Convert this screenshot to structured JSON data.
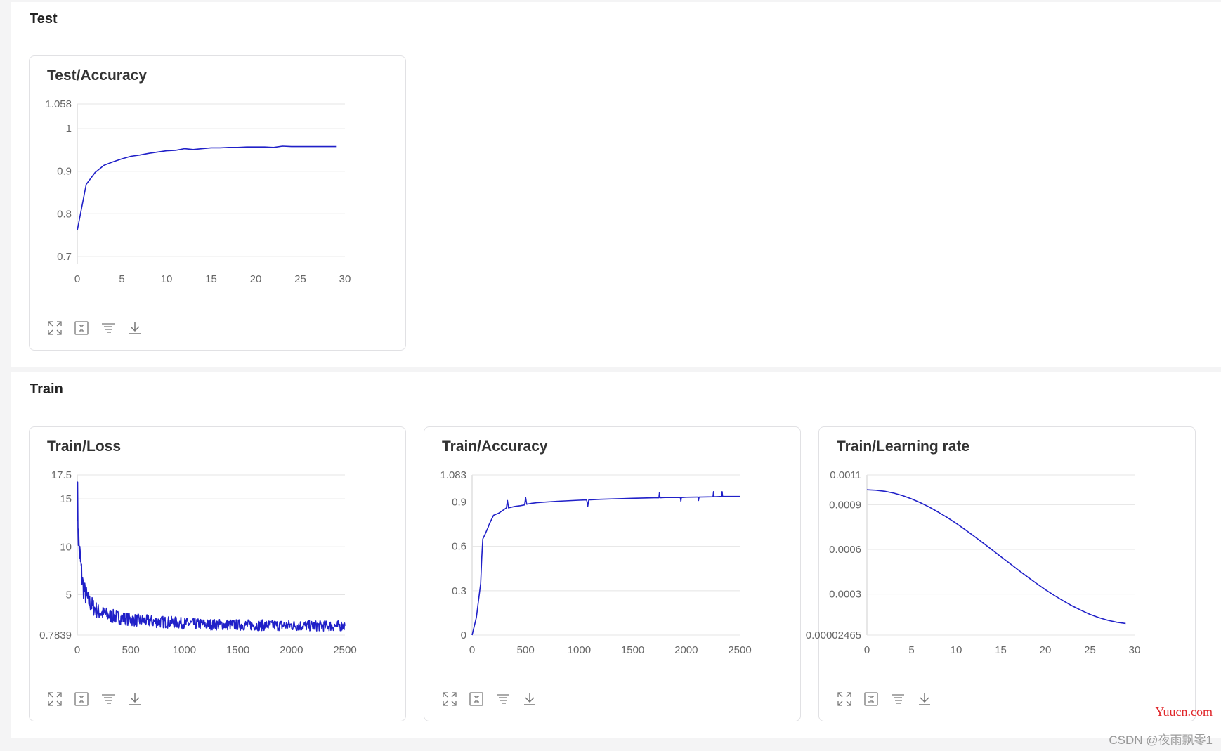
{
  "sections": [
    {
      "title": "Test",
      "cards": [
        {
          "title": "Test/Accuracy",
          "chart_data": {
            "type": "line",
            "title": "Test/Accuracy",
            "xlim": [
              0,
              30
            ],
            "ylim": [
              0.6816,
              1.058
            ],
            "xticks": [
              0,
              5,
              10,
              15,
              20,
              25,
              30
            ],
            "yticks": [
              1.058,
              1,
              0.9,
              0.8,
              0.7
            ],
            "ytick_labels": [
              "1.058",
              "1",
              "0.9",
              "0.8",
              "0.7"
            ],
            "grid": true,
            "color": "#2020c8",
            "x": [
              0,
              1,
              2,
              3,
              4,
              5,
              6,
              7,
              8,
              9,
              10,
              11,
              12,
              13,
              14,
              15,
              16,
              17,
              18,
              19,
              20,
              21,
              22,
              23,
              24,
              25,
              26,
              27,
              28,
              29
            ],
            "y": [
              0.761,
              0.869,
              0.897,
              0.914,
              0.922,
              0.929,
              0.935,
              0.938,
              0.942,
              0.945,
              0.948,
              0.949,
              0.953,
              0.951,
              0.953,
              0.955,
              0.955,
              0.956,
              0.956,
              0.957,
              0.957,
              0.957,
              0.956,
              0.959,
              0.958,
              0.958,
              0.958,
              0.958,
              0.958,
              0.958
            ]
          }
        }
      ]
    },
    {
      "title": "Train",
      "cards": [
        {
          "title": "Train/Loss",
          "chart_data": {
            "type": "line",
            "title": "Train/Loss",
            "xlim": [
              0,
              2500
            ],
            "ylim": [
              0.7839,
              17.5
            ],
            "xticks": [
              0,
              500,
              1000,
              1500,
              2000,
              2500
            ],
            "yticks": [
              17.5,
              15,
              10,
              5,
              0.7839
            ],
            "ytick_labels": [
              "17.5",
              "15",
              "10",
              "5",
              "0.7839"
            ],
            "grid": true,
            "color": "#2020c8",
            "noisy": true,
            "x": [
              0,
              10,
              20,
              30,
              40,
              50,
              70,
              100,
              150,
              200,
              300,
              400,
              500,
              700,
              900,
              1000,
              1200,
              1500,
              1800,
              2000,
              2200,
              2500
            ],
            "y": [
              15.8,
              11.5,
              9.5,
              8.3,
              7.2,
              6.2,
              5.2,
              4.4,
              3.7,
              3.2,
              2.8,
              2.6,
              2.4,
              2.2,
              2.1,
              2.0,
              1.9,
              1.85,
              1.8,
              1.8,
              1.75,
              1.75
            ]
          }
        },
        {
          "title": "Train/Accuracy",
          "chart_data": {
            "type": "line",
            "title": "Train/Accuracy",
            "xlim": [
              0,
              2500
            ],
            "ylim": [
              0,
              1.083
            ],
            "xticks": [
              0,
              500,
              1000,
              1500,
              2000,
              2500
            ],
            "yticks": [
              1.083,
              0.9,
              0.6,
              0.3,
              0
            ],
            "ytick_labels": [
              "1.083",
              "0.9",
              "0.6",
              "0.3",
              "0"
            ],
            "grid": true,
            "color": "#2020c8",
            "x": [
              0,
              40,
              80,
              90,
              100,
              120,
              150,
              160,
              200,
              250,
              300,
              320,
              330,
              340,
              400,
              450,
              490,
              500,
              510,
              550,
              600,
              800,
              1000,
              1070,
              1080,
              1090,
              1200,
              1500,
              1700,
              1745,
              1750,
              1755,
              1800,
              1900,
              1945,
              1950,
              1955,
              2000,
              2100,
              2110,
              2115,
              2120,
              2250,
              2255,
              2260,
              2300,
              2330,
              2335,
              2340,
              2400,
              2500
            ],
            "y": [
              0.0,
              0.12,
              0.35,
              0.52,
              0.65,
              0.68,
              0.73,
              0.75,
              0.81,
              0.825,
              0.85,
              0.86,
              0.91,
              0.86,
              0.87,
              0.875,
              0.88,
              0.93,
              0.885,
              0.89,
              0.895,
              0.905,
              0.912,
              0.914,
              0.87,
              0.914,
              0.918,
              0.925,
              0.928,
              0.928,
              0.965,
              0.928,
              0.93,
              0.93,
              0.93,
              0.905,
              0.93,
              0.932,
              0.933,
              0.933,
              0.91,
              0.933,
              0.935,
              0.97,
              0.935,
              0.936,
              0.937,
              0.97,
              0.937,
              0.937,
              0.937
            ]
          }
        },
        {
          "title": "Train/Learning rate",
          "chart_data": {
            "type": "line",
            "title": "Train/Learning rate",
            "xlim": [
              0,
              30
            ],
            "ylim": [
              2.465e-05,
              0.0011
            ],
            "xticks": [
              0,
              5,
              10,
              15,
              20,
              25,
              30
            ],
            "yticks": [
              0.0011,
              0.0009,
              0.0006,
              0.0003,
              2.465e-05
            ],
            "ytick_labels": [
              "0.0011",
              "0.0009",
              "0.0006",
              "0.0003",
              "0.00002465"
            ],
            "grid": true,
            "color": "#2020c8",
            "x": [
              0,
              1,
              2,
              3,
              4,
              5,
              6,
              7,
              8,
              9,
              10,
              11,
              12,
              13,
              14,
              15,
              16,
              17,
              18,
              19,
              20,
              21,
              22,
              23,
              24,
              25,
              26,
              27,
              28,
              29
            ],
            "y": [
              0.001,
              0.000997,
              0.00099,
              0.000978,
              0.000961,
              0.000939,
              0.000913,
              0.000884,
              0.00085,
              0.000814,
              0.000775,
              0.000733,
              0.000689,
              0.000644,
              0.000598,
              0.000552,
              0.000506,
              0.00046,
              0.000415,
              0.000372,
              0.00033,
              0.000291,
              0.000255,
              0.000221,
              0.000191,
              0.000164,
              0.000142,
              0.000124,
              0.000111,
              0.000103
            ]
          }
        }
      ]
    }
  ],
  "toolbar_icons": [
    "expand-icon",
    "fit-screen-icon",
    "filter-lines-icon",
    "download-icon"
  ],
  "watermarks": {
    "site": "Yuucn.com",
    "author": "CSDN @夜雨飘零1"
  }
}
